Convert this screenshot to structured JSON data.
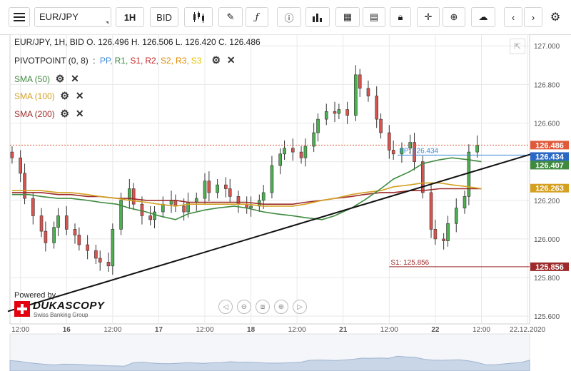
{
  "toolbar": {
    "instrument": "EUR/JPY",
    "timeframe": "1H",
    "side": "BID",
    "icons": [
      "menu-icon",
      "candles-icon",
      "pencil-icon",
      "function-icon",
      "info-icon",
      "bars-icon",
      "calendar-icon",
      "news-icon",
      "lock-icon",
      "crosshair-icon",
      "zoom-icon",
      "upload-icon",
      "prev-icon",
      "next-icon",
      "gear-icon"
    ]
  },
  "legend": {
    "ohlc": "EUR/JPY, 1H, BID   O. 126.496 H. 126.506 L. 126.420 C. 126.486",
    "pivot": {
      "label": "PIVOTPOINT (0, 8)",
      "prefix": ":",
      "items": [
        {
          "text": "PP,",
          "color": "#3c87d6"
        },
        {
          "text": "R1,",
          "color": "#3a8a3a"
        },
        {
          "text": "S1,",
          "color": "#c62828"
        },
        {
          "text": "R2,",
          "color": "#c62828"
        },
        {
          "text": "S2,",
          "color": "#e08a00"
        },
        {
          "text": "R3,",
          "color": "#e08a00"
        },
        {
          "text": "S3",
          "color": "#e6c200"
        }
      ]
    },
    "sma": [
      {
        "label": "SMA (50)",
        "color": "#3f8a3f"
      },
      {
        "label": "SMA (100)",
        "color": "#d4a020"
      },
      {
        "label": "SMA (200)",
        "color": "#9c2a2a"
      }
    ]
  },
  "branding": {
    "powered": "Powered by",
    "name": "DUKASCOPY",
    "sub": "Swiss Banking Group"
  },
  "chart_data": {
    "type": "line",
    "ylim": [
      125.56,
      127.06
    ],
    "y_ticks": [
      125.6,
      125.8,
      126.0,
      126.2,
      126.4,
      126.6,
      126.8,
      127.0
    ],
    "y_tick_labels": [
      "125.600",
      "125.800",
      "126.000",
      "126.200",
      "126.400",
      "126.600",
      "126.800",
      "127.000"
    ],
    "x_labels": [
      "12:00",
      "16",
      "12:00",
      "17",
      "12:00",
      "18",
      "12:00",
      "21",
      "12:00",
      "22",
      "12:00",
      "22.12.2020"
    ],
    "x_label_index": [
      2,
      13,
      24,
      35,
      46,
      57,
      68,
      79,
      90,
      101,
      112,
      123
    ],
    "price_close": [
      126.42,
      126.34,
      126.21,
      126.12,
      126.04,
      125.98,
      126.06,
      126.12,
      126.05,
      126.02,
      125.97,
      125.94,
      125.9,
      125.88,
      125.86,
      126.05,
      126.2,
      126.26,
      126.18,
      126.12,
      126.1,
      126.14,
      126.18,
      126.2,
      126.17,
      126.14,
      126.19,
      126.21,
      126.3,
      126.24,
      126.28,
      126.26,
      126.22,
      126.18,
      126.16,
      126.17,
      126.2,
      126.24,
      126.38,
      126.44,
      126.47,
      126.45,
      126.42,
      126.48,
      126.55,
      126.62,
      126.66,
      126.65,
      126.67,
      126.64,
      126.85,
      126.78,
      126.74,
      126.62,
      126.55,
      126.46,
      126.44,
      126.47,
      126.5,
      126.4,
      126.24,
      126.05,
      126.0,
      125.99,
      126.08,
      126.16,
      126.22,
      126.45,
      126.486
    ],
    "pivot": {
      "PP": 126.434,
      "S1": 125.856
    },
    "tags": [
      {
        "value": "126.486",
        "color": "#e05a3a"
      },
      {
        "value": "126.434",
        "color": "#2b67c4"
      },
      {
        "value": "126.407",
        "color": "#3f8a3f"
      },
      {
        "value": "126.263",
        "color": "#d4a020"
      },
      {
        "value": "125.856",
        "color": "#9c2a2a"
      }
    ],
    "level_labels": {
      "pp": "PP: 126.434",
      "s1": "S1: 125.856"
    },
    "trendline": {
      "from": [
        0,
        125.625
      ],
      "to": [
        124,
        126.44
      ]
    },
    "sma_50": [
      126.23,
      126.23,
      126.22,
      126.21,
      126.21,
      126.2,
      126.19,
      126.18,
      126.16,
      126.14,
      126.12,
      126.1,
      126.13,
      126.15,
      126.16,
      126.17,
      126.16,
      126.14,
      126.13,
      126.12,
      126.11,
      126.1,
      126.12,
      126.16,
      126.2,
      126.26,
      126.31,
      126.35,
      126.39,
      126.41,
      126.42,
      126.41,
      126.4
    ],
    "sma_100": [
      126.25,
      126.25,
      126.25,
      126.24,
      126.24,
      126.23,
      126.22,
      126.21,
      126.2,
      126.19,
      126.18,
      126.17,
      126.18,
      126.18,
      126.18,
      126.18,
      126.18,
      126.17,
      126.17,
      126.17,
      126.18,
      126.2,
      126.21,
      126.23,
      126.24,
      126.25,
      126.27,
      126.28,
      126.29,
      126.29,
      126.28,
      126.27,
      126.26
    ],
    "sma_200": [
      126.24,
      126.24,
      126.24,
      126.23,
      126.23,
      126.22,
      126.22,
      126.21,
      126.21,
      126.2,
      126.2,
      126.2,
      126.19,
      126.19,
      126.19,
      126.19,
      126.19,
      126.18,
      126.18,
      126.18,
      126.19,
      126.2,
      126.21,
      126.22,
      126.23,
      126.24,
      126.24,
      126.25,
      126.25,
      126.26,
      126.26,
      126.26,
      126.26
    ],
    "grid": true,
    "legend_position": "top-left"
  },
  "colors": {
    "bull": "#4caf50",
    "bear": "#d9534f",
    "grid": "#e8e8e8",
    "axis": "#cfcfcf"
  }
}
